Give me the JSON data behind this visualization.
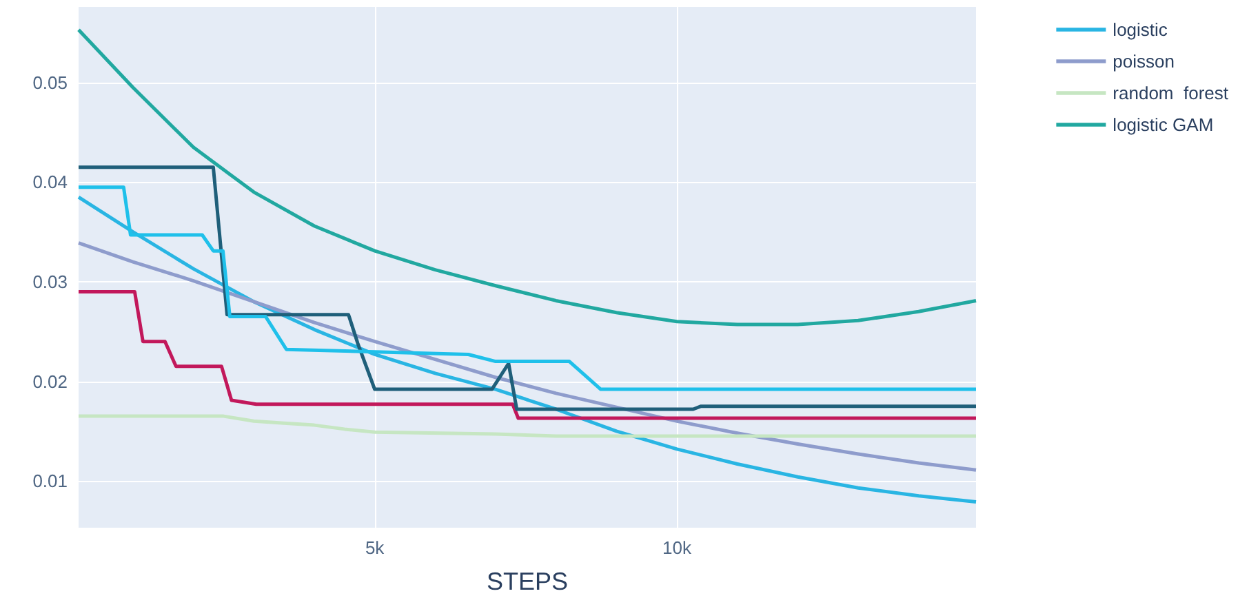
{
  "chart_data": {
    "type": "line",
    "xlabel": "STEPS",
    "xlim": [
      100,
      14950
    ],
    "ylim": [
      0.0053,
      0.0576
    ],
    "xticks": [
      {
        "value": 5000,
        "label": "5k"
      },
      {
        "value": 10000,
        "label": "10k"
      }
    ],
    "yticks": [
      0.01,
      0.02,
      0.03,
      0.04,
      0.05
    ],
    "grid": true,
    "legend": "right",
    "marker": "none",
    "line_style": "solid",
    "series": [
      {
        "name": "logistic",
        "color": "#29b5e3",
        "x": [
          100,
          1000,
          2000,
          3000,
          4000,
          5000,
          6000,
          7000,
          8000,
          9000,
          10000,
          11000,
          12000,
          13000,
          14000,
          14950
        ],
        "values": [
          0.0385,
          0.035,
          0.0313,
          0.028,
          0.0252,
          0.0227,
          0.0208,
          0.0192,
          0.0172,
          0.015,
          0.0132,
          0.0117,
          0.0104,
          0.0093,
          0.0085,
          0.0079
        ]
      },
      {
        "name": "poisson",
        "color": "#8e9ccc",
        "x": [
          100,
          1000,
          2000,
          3000,
          4000,
          5000,
          6000,
          7000,
          8000,
          9000,
          10000,
          11000,
          12000,
          13000,
          14000,
          14950
        ],
        "values": [
          0.0339,
          0.032,
          0.0301,
          0.028,
          0.0259,
          0.024,
          0.0222,
          0.0204,
          0.0188,
          0.0174,
          0.016,
          0.0148,
          0.0137,
          0.0127,
          0.0118,
          0.0111
        ]
      },
      {
        "name": "random  forest",
        "color": "#c6e6c2",
        "x": [
          100,
          2500,
          3000,
          3500,
          4000,
          4500,
          5000,
          7000,
          8000,
          14950
        ],
        "values": [
          0.0165,
          0.0165,
          0.016,
          0.0158,
          0.0156,
          0.0152,
          0.0149,
          0.0147,
          0.0145,
          0.0145
        ]
      },
      {
        "color": "#c2185b",
        "x": [
          100,
          1028,
          1165,
          1530,
          1712,
          2466,
          2630,
          3040,
          7283,
          7375,
          14950
        ],
        "values": [
          0.029,
          0.029,
          0.024,
          0.024,
          0.0215,
          0.0215,
          0.0181,
          0.0177,
          0.0177,
          0.0163,
          0.0163
        ]
      },
      {
        "color": "#1f5f7a",
        "x": [
          100,
          2329,
          2557,
          4566,
          4720,
          5000,
          6940,
          7215,
          7350,
          10270,
          10400,
          14950
        ],
        "values": [
          0.0415,
          0.0415,
          0.0267,
          0.0267,
          0.0238,
          0.0192,
          0.0192,
          0.0218,
          0.0172,
          0.0172,
          0.0175,
          0.0175
        ]
      },
      {
        "name": "logistic GAM",
        "color": "#21a8a0",
        "x": [
          100,
          1000,
          2000,
          3000,
          4000,
          5000,
          6000,
          7000,
          8000,
          9000,
          10000,
          11000,
          12000,
          13000,
          14000,
          14950
        ],
        "values": [
          0.0553,
          0.0495,
          0.0435,
          0.039,
          0.0356,
          0.0331,
          0.0312,
          0.0296,
          0.0281,
          0.0269,
          0.026,
          0.0257,
          0.0257,
          0.0261,
          0.027,
          0.0281
        ]
      },
      {
        "color": "#1fc0ea",
        "x": [
          100,
          845,
          960,
          2146,
          2329,
          2489,
          2603,
          3196,
          3539,
          6550,
          7000,
          8220,
          8740,
          14950
        ],
        "values": [
          0.0395,
          0.0395,
          0.0347,
          0.0347,
          0.0331,
          0.0331,
          0.0265,
          0.0265,
          0.0232,
          0.0227,
          0.022,
          0.022,
          0.0192,
          0.0192
        ]
      }
    ]
  }
}
